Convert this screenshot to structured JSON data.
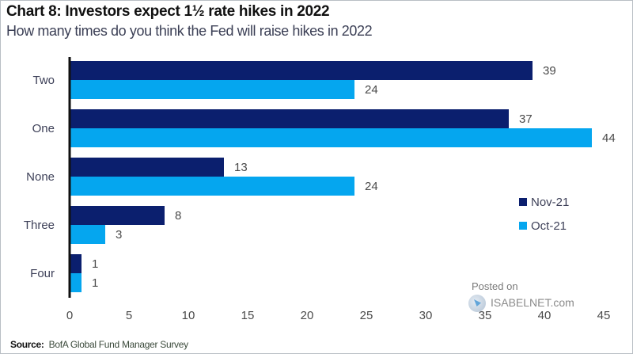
{
  "chart_data": {
    "type": "bar",
    "orientation": "horizontal",
    "title": "Chart 8: Investors expect 1½  rate hikes in 2022",
    "subtitle": "How many times do you think the Fed will raise hikes in 2022",
    "categories": [
      "Two",
      "One",
      "None",
      "Three",
      "Four"
    ],
    "series": [
      {
        "name": "Nov-21",
        "color": "#0b1f6e",
        "values": [
          39,
          37,
          13,
          8,
          1
        ]
      },
      {
        "name": "Oct-21",
        "color": "#05a6ef",
        "values": [
          24,
          44,
          24,
          3,
          1
        ]
      }
    ],
    "xlabel": "",
    "ylabel": "",
    "xlim": [
      0,
      45
    ],
    "xticks": [
      0,
      5,
      10,
      15,
      20,
      25,
      30,
      35,
      40,
      45
    ],
    "grid": false,
    "legend_position": "right",
    "data_labels": true
  },
  "source": {
    "prefix": "Source:",
    "text": "BofA Global Fund Manager Survey"
  },
  "watermark": {
    "line1": "Posted on",
    "line2": "ISABELNET.com"
  }
}
